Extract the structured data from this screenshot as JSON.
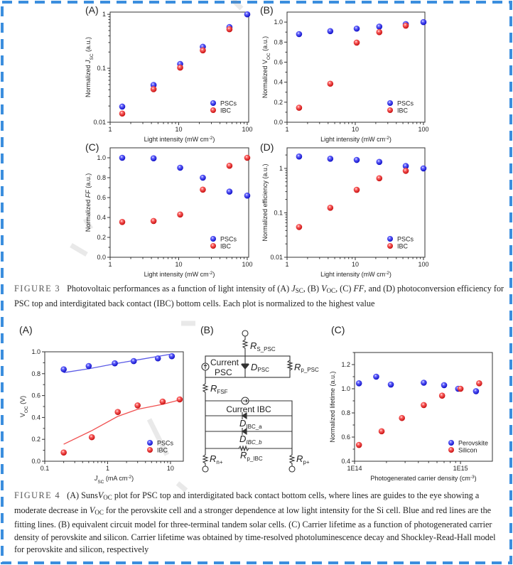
{
  "colors": {
    "border": "#3b8ede",
    "psc": "#1414e6",
    "ibc": "#e61414",
    "psc_line": "#5a5ae6",
    "ibc_line": "#f05050"
  },
  "figure3": {
    "panels": [
      "(A)",
      "(B)",
      "(C)",
      "(D)"
    ],
    "caption": {
      "label": "FIGURE 3",
      "segments": [
        {
          "text": "Photovoltaic performances as a function of light intensity of (A) ",
          "style": ""
        },
        {
          "text": "J",
          "style": "i"
        },
        {
          "text": "SC",
          "style": "sub"
        },
        {
          "text": ", (B) ",
          "style": ""
        },
        {
          "text": "V",
          "style": "i"
        },
        {
          "text": "OC",
          "style": "sub"
        },
        {
          "text": ", (C) ",
          "style": ""
        },
        {
          "text": "FF",
          "style": "i"
        },
        {
          "text": ", and (D) photoconversion efficiency for PSC top and interdigitated back contact (IBC) bottom cells. Each plot is normalized to the highest value",
          "style": ""
        }
      ]
    }
  },
  "figure4": {
    "panels": [
      "(A)",
      "(B)",
      "(C)"
    ],
    "caption": {
      "label": "FIGURE 4",
      "segments": [
        {
          "text": "(A) Suns",
          "style": ""
        },
        {
          "text": "V",
          "style": "i"
        },
        {
          "text": "OC",
          "style": "sub"
        },
        {
          "text": " plot for PSC top and interdigitated back contact bottom cells, where lines are guides to the eye showing a moderate decrease in ",
          "style": ""
        },
        {
          "text": "V",
          "style": "i"
        },
        {
          "text": "OC",
          "style": "sub"
        },
        {
          "text": " for the perovskite cell and a stronger dependence at low light intensity for the Si cell. Blue and red lines are the fitting lines. (B) equivalent circuit model for three-terminal tandem solar cells. (C) Carrier lifetime as a function of photogenerated carrier density of perovskite and silicon. Carrier lifetime was obtained by time-resolved photoluminescence decay and Shockley-Read-Hall model for perovskite and silicon, respectively",
          "style": ""
        }
      ]
    }
  },
  "circuit": {
    "r_s_psc": [
      "R",
      "S_PSC"
    ],
    "current_psc": [
      "Current",
      "PSC"
    ],
    "d_psc": [
      "D",
      "PSC"
    ],
    "r_p_psc": [
      "R",
      "p_PSC"
    ],
    "r_fsf": [
      "R",
      "FSF"
    ],
    "current_ibc": "Current IBC",
    "d_ibc_a": [
      "D",
      "IBC_a"
    ],
    "d_ibc_b": [
      "D",
      "IBC_b"
    ],
    "r_p_ibc": [
      "R",
      "p_IBC"
    ],
    "r_n": [
      "R",
      "n+"
    ],
    "r_p": [
      "R",
      "p+"
    ]
  },
  "chart_data": [
    {
      "type": "scatter",
      "title": "(A)",
      "xscale": "log",
      "yscale": "log",
      "xlim": [
        1,
        105
      ],
      "ylim": [
        0.01,
        1.1
      ],
      "xticks": [
        1,
        10,
        100
      ],
      "xticklabels": [
        "1",
        "10",
        "100"
      ],
      "yticks": [
        0.01,
        0.1,
        1
      ],
      "yticklabels": [
        "0.01",
        "0.1",
        "1"
      ],
      "xlabel": [
        {
          "text": "Light intensity (mW cm",
          "style": ""
        },
        {
          "text": "-2",
          "style": "sup"
        },
        {
          "text": ")",
          "style": ""
        }
      ],
      "ylabel": [
        {
          "text": "Normalized ",
          "style": ""
        },
        {
          "text": "J",
          "style": "i"
        },
        {
          "text": "SC",
          "style": "sub"
        },
        {
          "text": " (a.u.)",
          "style": ""
        }
      ],
      "legend": "bottom-right",
      "series": [
        {
          "name": "PSCs",
          "color": "psc",
          "x": [
            1.5,
            4.3,
            10.5,
            22.5,
            55,
            100
          ],
          "y": [
            0.0195,
            0.049,
            0.12,
            0.25,
            0.58,
            1.0
          ]
        },
        {
          "name": "IBC",
          "color": "ibc",
          "x": [
            1.5,
            4.3,
            10.5,
            22.5,
            55
          ],
          "y": [
            0.0145,
            0.041,
            0.103,
            0.215,
            0.53
          ]
        }
      ]
    },
    {
      "type": "scatter",
      "title": "(B)",
      "xscale": "log",
      "yscale": "linear",
      "xlim": [
        1,
        105
      ],
      "ylim": [
        0,
        1.1
      ],
      "xticks": [
        1,
        10,
        100
      ],
      "xticklabels": [
        "1",
        "10",
        "100"
      ],
      "yticks": [
        0,
        0.2,
        0.4,
        0.6,
        0.8,
        1.0
      ],
      "yticklabels": [
        "0.0",
        "0.2",
        "0.4",
        "0.6",
        "0.8",
        "1.0"
      ],
      "xlabel": [
        {
          "text": "Light intensity (mW cm",
          "style": ""
        },
        {
          "text": "-2",
          "style": "sup"
        },
        {
          "text": ")",
          "style": ""
        }
      ],
      "ylabel": [
        {
          "text": "Normalized V",
          "style": ""
        },
        {
          "text": "OC",
          "style": "sub"
        },
        {
          "text": " (a.u.)",
          "style": ""
        }
      ],
      "legend": "bottom-right",
      "series": [
        {
          "name": "PSCs",
          "color": "psc",
          "x": [
            1.5,
            4.3,
            10.5,
            22.5,
            55,
            100
          ],
          "y": [
            0.88,
            0.91,
            0.935,
            0.955,
            0.98,
            1.0
          ]
        },
        {
          "name": "IBC",
          "color": "ibc",
          "x": [
            1.5,
            4.3,
            10.5,
            22.5,
            55
          ],
          "y": [
            0.145,
            0.385,
            0.795,
            0.9,
            0.965
          ]
        }
      ]
    },
    {
      "type": "scatter",
      "title": "(C)",
      "xscale": "log",
      "yscale": "linear",
      "xlim": [
        1,
        105
      ],
      "ylim": [
        0,
        1.1
      ],
      "xticks": [
        1,
        10,
        100
      ],
      "xticklabels": [
        "1",
        "10",
        "100"
      ],
      "yticks": [
        0,
        0.2,
        0.4,
        0.6,
        0.8,
        1.0
      ],
      "yticklabels": [
        "0.0",
        "0.2",
        "0.4",
        "0.6",
        "0.8",
        "1.0"
      ],
      "xlabel": [
        {
          "text": "Light intensity (mW cm",
          "style": ""
        },
        {
          "text": "-2",
          "style": "sup"
        },
        {
          "text": ")",
          "style": ""
        }
      ],
      "ylabel": [
        {
          "text": "Normalized ",
          "style": ""
        },
        {
          "text": "FF",
          "style": "i"
        },
        {
          "text": " (a.u.)",
          "style": ""
        }
      ],
      "legend": "bottom-right",
      "series": [
        {
          "name": "PSCs",
          "color": "psc",
          "x": [
            1.5,
            4.3,
            10.5,
            22.5,
            55,
            100
          ],
          "y": [
            1.0,
            0.995,
            0.9,
            0.8,
            0.66,
            0.62
          ]
        },
        {
          "name": "IBC",
          "color": "ibc",
          "x": [
            1.5,
            4.3,
            10.5,
            22.5,
            55,
            100
          ],
          "y": [
            0.355,
            0.365,
            0.43,
            0.68,
            0.92,
            1.0
          ]
        }
      ]
    },
    {
      "type": "scatter",
      "title": "(D)",
      "xscale": "log",
      "yscale": "log",
      "xlim": [
        1,
        105
      ],
      "ylim": [
        0.01,
        2.9
      ],
      "xticks": [
        1,
        10,
        100
      ],
      "xticklabels": [
        "1",
        "10",
        "100"
      ],
      "yticks": [
        0.01,
        0.1,
        1
      ],
      "yticklabels": [
        "0.01",
        "0.1",
        "1"
      ],
      "xlabel": [
        {
          "text": "Light intensity (mW cm",
          "style": ""
        },
        {
          "text": "-2",
          "style": "sup"
        },
        {
          "text": ")",
          "style": ""
        }
      ],
      "ylabel": [
        {
          "text": "Normalized efficiency (a.u.)",
          "style": ""
        }
      ],
      "legend": "bottom-right",
      "series": [
        {
          "name": "PSCs",
          "color": "psc",
          "x": [
            1.5,
            4.3,
            10.5,
            22.5,
            55,
            100
          ],
          "y": [
            1.85,
            1.65,
            1.55,
            1.4,
            1.13,
            1.0
          ]
        },
        {
          "name": "IBC",
          "color": "ibc",
          "x": [
            1.5,
            4.3,
            10.5,
            22.5,
            55
          ],
          "y": [
            0.048,
            0.13,
            0.33,
            0.6,
            0.88
          ]
        }
      ]
    },
    {
      "type": "scatter",
      "title": "(A)",
      "xscale": "log",
      "yscale": "linear",
      "xlim": [
        0.1,
        16
      ],
      "ylim": [
        0,
        1.0
      ],
      "xticks": [
        0.1,
        1,
        10
      ],
      "xticklabels": [
        "0.1",
        "1",
        "10"
      ],
      "yticks": [
        0,
        0.2,
        0.4,
        0.6,
        0.8,
        1.0
      ],
      "yticklabels": [
        "0.0",
        "0.2",
        "0.4",
        "0.6",
        "0.8",
        "1.0"
      ],
      "xlabel": [
        {
          "text": "J",
          "style": "i"
        },
        {
          "text": "SC",
          "style": "sub"
        },
        {
          "text": " (mA cm",
          "style": ""
        },
        {
          "text": "-2",
          "style": "sup"
        },
        {
          "text": ")",
          "style": ""
        }
      ],
      "ylabel": [
        {
          "text": "V",
          "style": ""
        },
        {
          "text": "OC",
          "style": "sub"
        },
        {
          "text": " (V)",
          "style": ""
        }
      ],
      "legend": "bottom-right",
      "series": [
        {
          "name": "PSCs",
          "color": "psc",
          "line_color": "psc_line",
          "x": [
            0.2,
            0.5,
            1.3,
            2.6,
            6.3,
            10.5
          ],
          "y": [
            0.84,
            0.87,
            0.895,
            0.915,
            0.94,
            0.96
          ],
          "fit_x": [
            0.2,
            0.5,
            1.3,
            2.6,
            10.5
          ],
          "fit_y": [
            0.81,
            0.845,
            0.89,
            0.92,
            0.98
          ]
        },
        {
          "name": "IBC",
          "color": "ibc",
          "line_color": "ibc_line",
          "x": [
            0.2,
            0.56,
            1.45,
            3.0,
            7.5,
            14
          ],
          "y": [
            0.08,
            0.22,
            0.45,
            0.51,
            0.545,
            0.565
          ],
          "fit_x": [
            0.2,
            0.56,
            1.45,
            3.0,
            7.5,
            14
          ],
          "fit_y": [
            0.155,
            0.28,
            0.41,
            0.475,
            0.52,
            0.56
          ]
        }
      ]
    },
    {
      "type": "scatter",
      "title": "(C)",
      "xscale": "log",
      "yscale": "linear",
      "xlim": [
        100000000000000.0,
        2000000000000000.0
      ],
      "ylim": [
        0.4,
        1.3
      ],
      "xticks": [
        100000000000000.0,
        1000000000000000.0
      ],
      "xticklabels": [
        "1E14",
        "1E15"
      ],
      "yticks": [
        0.4,
        0.6,
        0.8,
        1.0,
        1.2
      ],
      "yticklabels": [
        "0.4",
        "0.6",
        "0.8",
        "1.0",
        "1.2"
      ],
      "xlabel": [
        {
          "text": "Photogenerated carrier density (cm",
          "style": ""
        },
        {
          "text": "-3",
          "style": "sup"
        },
        {
          "text": ")",
          "style": ""
        }
      ],
      "ylabel": [
        {
          "text": "Normalized lifetime (a.u.)",
          "style": ""
        }
      ],
      "legend": "bottom-right",
      "series": [
        {
          "name": "Perovskite",
          "color": "psc",
          "x": [
            110000000000000.0,
            160000000000000.0,
            220000000000000.0,
            450000000000000.0,
            700000000000000.0,
            950000000000000.0,
            1400000000000000.0
          ],
          "y": [
            1.045,
            1.1,
            1.035,
            1.05,
            1.03,
            1.0,
            0.98
          ]
        },
        {
          "name": "Silicon",
          "color": "ibc",
          "x": [
            110000000000000.0,
            180000000000000.0,
            280000000000000.0,
            450000000000000.0,
            670000000000000.0,
            1000000000000000.0,
            1500000000000000.0
          ],
          "y": [
            0.535,
            0.648,
            0.758,
            0.865,
            0.943,
            1.0,
            1.045
          ]
        }
      ]
    }
  ]
}
